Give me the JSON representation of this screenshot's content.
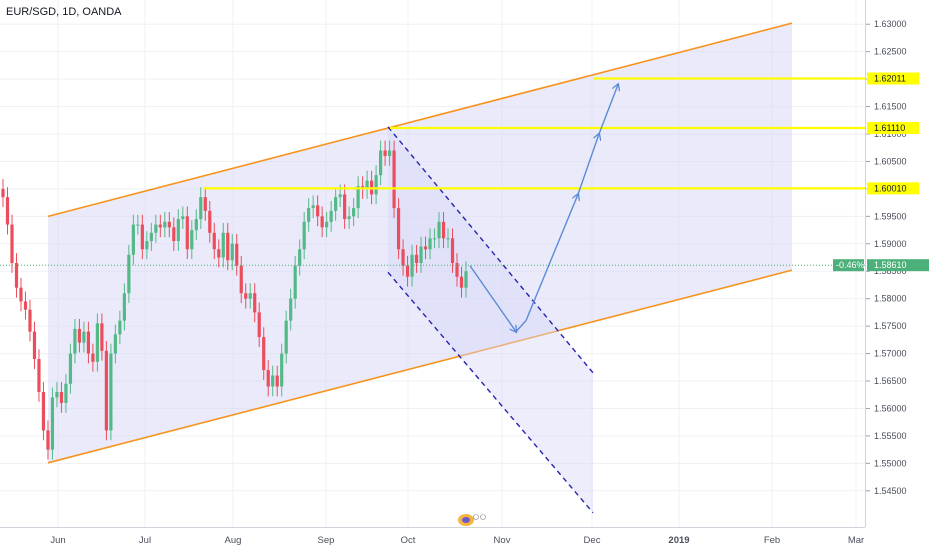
{
  "header": {
    "title": "EUR/SGD, 1D, OANDA"
  },
  "colors": {
    "up": "#53b987",
    "down": "#eb4d5c",
    "channel_line": "#f7931a",
    "channel_fill": "#d8d8f8",
    "level_line": "#ffff00",
    "level_label_bg": "#ffff00",
    "dashed": "#2424b0",
    "arrow": "#5b8bd6",
    "current_price_bg": "#4bb07a"
  },
  "chart_data": {
    "type": "candlestick",
    "symbol": "EUR/SGD",
    "timeframe": "1D",
    "source": "OANDA",
    "ylim": [
      1.5415,
      1.6315
    ],
    "y_ticks": [
      "1.63000",
      "1.62500",
      "1.62000",
      "1.61500",
      "1.61000",
      "1.60500",
      "1.60000",
      "1.59500",
      "1.59000",
      "1.58500",
      "1.58000",
      "1.57500",
      "1.57000",
      "1.56500",
      "1.56000",
      "1.55500",
      "1.55000",
      "1.54500"
    ],
    "x_ticks": [
      {
        "label": "Jun",
        "bold": false
      },
      {
        "label": "Jul",
        "bold": false
      },
      {
        "label": "Aug",
        "bold": false
      },
      {
        "label": "Sep",
        "bold": false
      },
      {
        "label": "Oct",
        "bold": false
      },
      {
        "label": "Nov",
        "bold": false
      },
      {
        "label": "Dec",
        "bold": false
      },
      {
        "label": "2019",
        "bold": true
      },
      {
        "label": "Feb",
        "bold": false
      },
      {
        "label": "Mar",
        "bold": false
      }
    ],
    "closes": [
      1.5985,
      1.5935,
      1.5865,
      1.582,
      1.5795,
      1.578,
      1.574,
      1.569,
      1.563,
      1.556,
      1.5525,
      1.562,
      1.563,
      1.561,
      1.5645,
      1.57,
      1.5745,
      1.572,
      1.574,
      1.57,
      1.5685,
      1.5755,
      1.5705,
      1.556,
      1.57,
      1.5735,
      1.576,
      1.581,
      1.588,
      1.5935,
      1.5935,
      1.589,
      1.5905,
      1.592,
      1.5935,
      1.593,
      1.594,
      1.593,
      1.5905,
      1.5945,
      1.595,
      1.589,
      1.5925,
      1.5945,
      1.5985,
      1.596,
      1.592,
      1.589,
      1.5875,
      1.592,
      1.587,
      1.59,
      1.586,
      1.581,
      1.58,
      1.581,
      1.5775,
      1.573,
      1.567,
      1.564,
      1.566,
      1.564,
      1.57,
      1.576,
      1.58,
      1.586,
      1.589,
      1.594,
      1.5965,
      1.597,
      1.595,
      1.593,
      1.594,
      1.596,
      1.5985,
      1.599,
      1.5945,
      1.595,
      1.5965,
      1.6005,
      1.6,
      1.6015,
      1.599,
      1.6025,
      1.607,
      1.606,
      1.607,
      1.5965,
      1.589,
      1.586,
      1.584,
      1.588,
      1.5865,
      1.5895,
      1.589,
      1.591,
      1.591,
      1.594,
      1.591,
      1.591,
      1.5865,
      1.584,
      1.582,
      1.585
    ],
    "levels": [
      {
        "label": "1.62011",
        "value": 1.62011
      },
      {
        "label": "1.61110",
        "value": 1.6111
      },
      {
        "label": "1.60010",
        "value": 1.6001
      }
    ],
    "current_price": {
      "label": "1.58610",
      "change": "-0.46%",
      "value": 1.5861
    },
    "channel": {
      "lower": [
        [
          1.5501
        ],
        [
          1.5852
        ]
      ],
      "upper": [
        [
          1.595
        ],
        [
          1.6302
        ]
      ]
    },
    "dashed_channel": {
      "upper": [
        1.6113,
        1.5665
      ],
      "lower": [
        1.5848,
        1.541
      ]
    },
    "projection": [
      1.586,
      1.574,
      1.576,
      1.599,
      1.61,
      1.619
    ]
  }
}
